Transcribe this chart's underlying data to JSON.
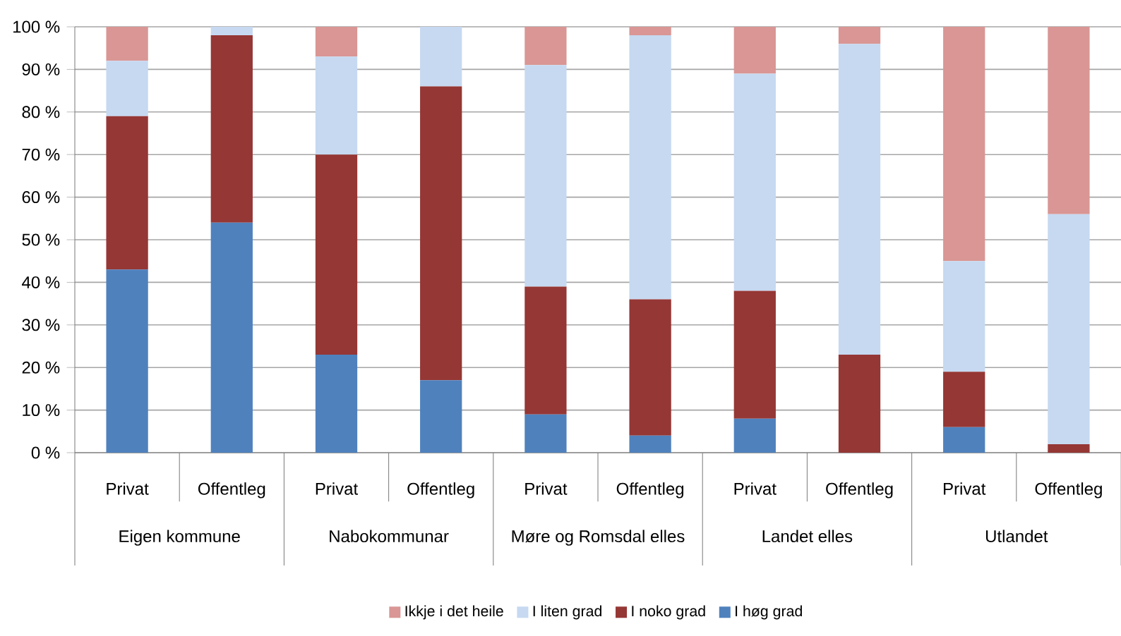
{
  "chart_data": {
    "type": "bar",
    "stacked": true,
    "categories": [
      "Privat",
      "Offentleg",
      "Privat",
      "Offentleg",
      "Privat",
      "Offentleg",
      "Privat",
      "Offentleg",
      "Privat",
      "Offentleg"
    ],
    "annotations": [
      "Eigen kommune",
      "Nabokommunar",
      "Møre og Romsdal elles",
      "Landet elles",
      "Utlandet"
    ],
    "series": [
      {
        "name": "I høg grad",
        "color": "#4f81bd",
        "values": [
          43,
          54,
          23,
          17,
          9,
          4,
          8,
          0,
          6,
          0
        ]
      },
      {
        "name": "I noko grad",
        "color": "#953735",
        "values": [
          36,
          44,
          47,
          69,
          30,
          32,
          30,
          23,
          13,
          2
        ]
      },
      {
        "name": "I liten grad",
        "color": "#c6d9f1",
        "values": [
          13,
          2,
          23,
          14,
          52,
          62,
          51,
          73,
          26,
          54
        ]
      },
      {
        "name": "Ikkje i det heile",
        "color": "#d99694",
        "values": [
          8,
          0,
          7,
          0,
          9,
          2,
          11,
          4,
          55,
          44
        ]
      }
    ],
    "ylim": [
      0,
      100
    ],
    "yticks": [
      {
        "value": 0,
        "label": "0 %"
      },
      {
        "value": 10,
        "label": "10 %"
      },
      {
        "value": 20,
        "label": "20 %"
      },
      {
        "value": 30,
        "label": "30 %"
      },
      {
        "value": 40,
        "label": "40 %"
      },
      {
        "value": 50,
        "label": "50 %"
      },
      {
        "value": 60,
        "label": "60 %"
      },
      {
        "value": 70,
        "label": "70 %"
      },
      {
        "value": 80,
        "label": "80 %"
      },
      {
        "value": 90,
        "label": "90 %"
      },
      {
        "value": 100,
        "label": "100 %"
      }
    ],
    "grid": "y",
    "legend": "bottom"
  }
}
